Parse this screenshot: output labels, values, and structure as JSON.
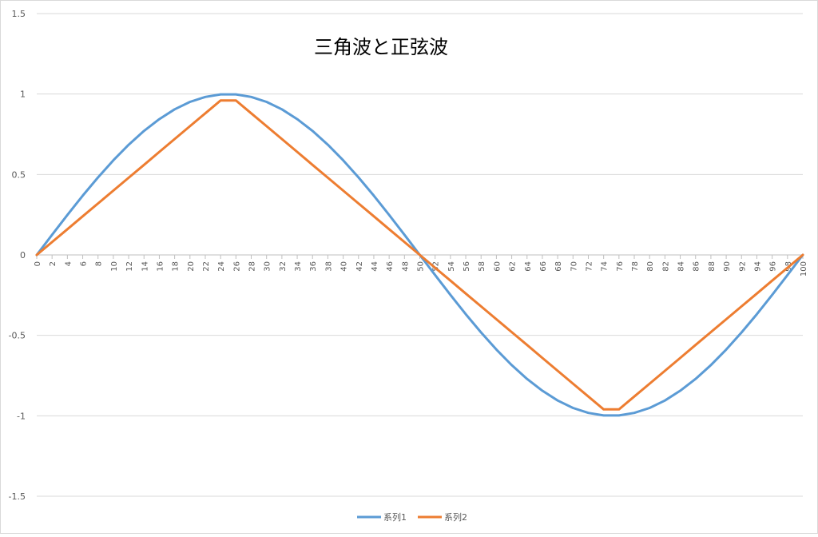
{
  "chart_data": {
    "type": "line",
    "title": "三角波と正弦波",
    "xlabel": "",
    "ylabel": "",
    "ylim": [
      -1.5,
      1.5
    ],
    "yticks": [
      1.5,
      1,
      0.5,
      0,
      -0.5,
      -1,
      -1.5
    ],
    "ytick_labels": [
      "1.5",
      "1",
      "0.5",
      "0",
      "-0.5",
      "-1",
      "-1.5"
    ],
    "xlim": [
      0,
      100
    ],
    "xticks": [
      0,
      2,
      4,
      6,
      8,
      10,
      12,
      14,
      16,
      18,
      20,
      22,
      24,
      26,
      28,
      30,
      32,
      34,
      36,
      38,
      40,
      42,
      44,
      46,
      48,
      50,
      52,
      54,
      56,
      58,
      60,
      62,
      64,
      66,
      68,
      70,
      72,
      74,
      76,
      78,
      80,
      82,
      84,
      86,
      88,
      90,
      92,
      94,
      96,
      98,
      100
    ],
    "grid": "horizontal",
    "legend_position": "bottom",
    "x": [
      0,
      2,
      4,
      6,
      8,
      10,
      12,
      14,
      16,
      18,
      20,
      22,
      24,
      26,
      28,
      30,
      32,
      34,
      36,
      38,
      40,
      42,
      44,
      46,
      48,
      50,
      52,
      54,
      56,
      58,
      60,
      62,
      64,
      66,
      68,
      70,
      72,
      74,
      76,
      78,
      80,
      82,
      84,
      86,
      88,
      90,
      92,
      94,
      96,
      98,
      100
    ],
    "series": [
      {
        "name": "系列1",
        "color": "#5b9bd5",
        "values": [
          0,
          0.125,
          0.249,
          0.368,
          0.482,
          0.588,
          0.685,
          0.771,
          0.844,
          0.905,
          0.951,
          0.982,
          0.998,
          0.998,
          0.982,
          0.951,
          0.905,
          0.844,
          0.771,
          0.685,
          0.588,
          0.482,
          0.368,
          0.249,
          0.125,
          0,
          -0.125,
          -0.249,
          -0.368,
          -0.482,
          -0.588,
          -0.685,
          -0.771,
          -0.844,
          -0.905,
          -0.951,
          -0.982,
          -0.998,
          -0.998,
          -0.982,
          -0.951,
          -0.905,
          -0.844,
          -0.771,
          -0.685,
          -0.588,
          -0.482,
          -0.368,
          -0.249,
          -0.125,
          0
        ]
      },
      {
        "name": "系列2",
        "color": "#ed7d31",
        "values": [
          0,
          0.08,
          0.16,
          0.24,
          0.32,
          0.4,
          0.48,
          0.56,
          0.64,
          0.72,
          0.8,
          0.88,
          0.96,
          0.96,
          0.88,
          0.8,
          0.72,
          0.64,
          0.56,
          0.48,
          0.4,
          0.32,
          0.24,
          0.16,
          0.08,
          0,
          -0.08,
          -0.16,
          -0.24,
          -0.32,
          -0.4,
          -0.48,
          -0.56,
          -0.64,
          -0.72,
          -0.8,
          -0.88,
          -0.96,
          -0.96,
          -0.88,
          -0.8,
          -0.72,
          -0.64,
          -0.56,
          -0.48,
          -0.4,
          -0.32,
          -0.24,
          -0.16,
          -0.08,
          0
        ]
      }
    ]
  }
}
